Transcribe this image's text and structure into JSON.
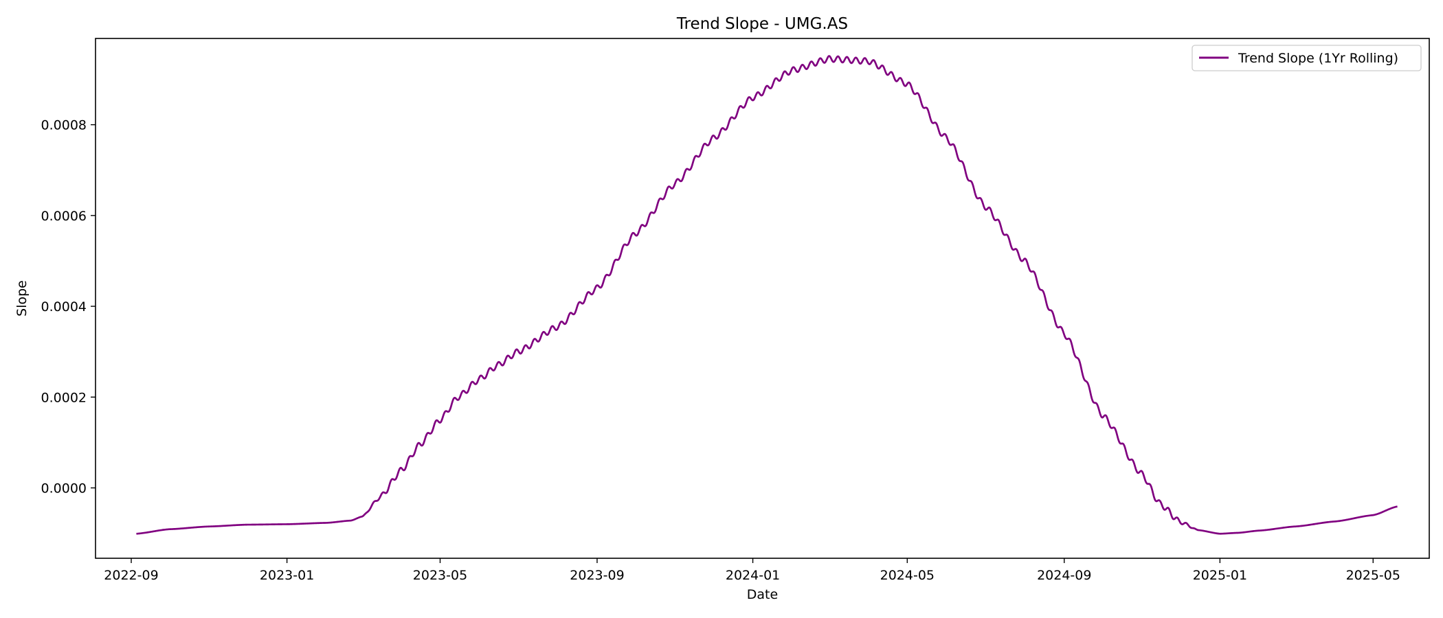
{
  "chart_data": {
    "type": "line",
    "title": "Trend Slope - UMG.AS",
    "xlabel": "Date",
    "ylabel": "Slope",
    "x_ticks": [
      "2022-09",
      "2023-01",
      "2023-05",
      "2023-09",
      "2024-01",
      "2024-05",
      "2024-09",
      "2025-01",
      "2025-05"
    ],
    "y_ticks": [
      "0.0000",
      "0.0002",
      "0.0004",
      "0.0006",
      "0.0008"
    ],
    "xlim": [
      "2022-08-04",
      "2025-06-14"
    ],
    "ylim": [
      -0.000155,
      0.00099
    ],
    "grid": false,
    "legend_position": "top-right",
    "series": [
      {
        "name": "Trend Slope (1Yr Rolling)",
        "color": "#800080",
        "oscillation": {
          "period_days": 7,
          "amplitude": 6.5e-06,
          "start": "2023-03-01",
          "end": "2024-12-15"
        },
        "x": [
          "2022-09-05",
          "2022-10-01",
          "2022-11-01",
          "2022-12-01",
          "2023-01-01",
          "2023-02-01",
          "2023-02-20",
          "2023-03-01",
          "2023-03-15",
          "2023-04-01",
          "2023-04-15",
          "2023-05-01",
          "2023-05-15",
          "2023-06-01",
          "2023-06-15",
          "2023-07-01",
          "2023-08-01",
          "2023-09-01",
          "2023-10-01",
          "2023-11-01",
          "2023-12-01",
          "2024-01-01",
          "2024-02-01",
          "2024-03-01",
          "2024-04-01",
          "2024-05-01",
          "2024-06-01",
          "2024-07-01",
          "2024-08-01",
          "2024-09-01",
          "2024-10-01",
          "2024-11-01",
          "2024-11-15",
          "2024-12-01",
          "2024-12-15",
          "2025-01-01",
          "2025-01-15",
          "2025-02-01",
          "2025-03-01",
          "2025-04-01",
          "2025-05-01",
          "2025-05-20"
        ],
        "y": [
          -0.000101,
          -9.1e-05,
          -8.5e-05,
          -8.1e-05,
          -8e-05,
          -7.7e-05,
          -7.2e-05,
          -6.3e-05,
          -2e-05,
          4e-05,
          9.5e-05,
          0.00015,
          0.0002,
          0.00024,
          0.00027,
          0.0003,
          0.000355,
          0.00044,
          0.00056,
          0.00067,
          0.00077,
          0.00086,
          0.00092,
          0.000945,
          0.00094,
          0.00089,
          0.00077,
          0.00062,
          0.0005,
          0.00034,
          0.00016,
          3e-05,
          -3.5e-05,
          -7.5e-05,
          -9.3e-05,
          -0.000101,
          -9.9e-05,
          -9.4e-05,
          -8.5e-05,
          -7.4e-05,
          -6e-05,
          -4.1e-05
        ]
      }
    ]
  }
}
